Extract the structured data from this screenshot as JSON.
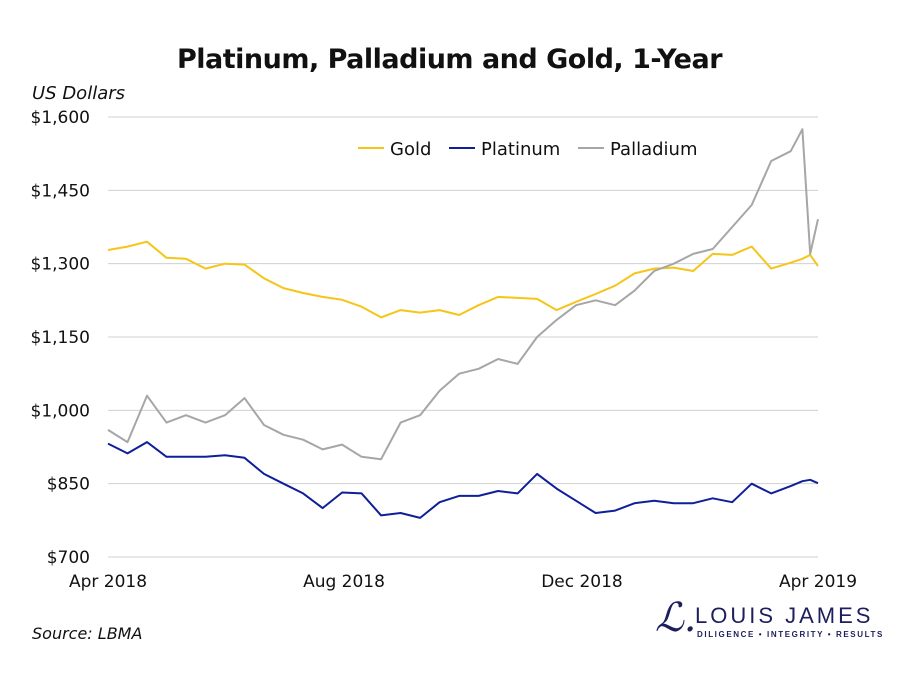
{
  "chart_data": {
    "type": "line",
    "title": "Platinum, Palladium and Gold, 1-Year",
    "ylabel": "US Dollars",
    "xlabel": "",
    "source": "Source: LBMA",
    "ylim": [
      700,
      1600
    ],
    "yticks": [
      700,
      850,
      1000,
      1150,
      1300,
      1450,
      1600
    ],
    "ytick_labels": [
      "$700",
      "$850",
      "$1,000",
      "$1,150",
      "$1,300",
      "$1,450",
      "$1,600"
    ],
    "xlim": [
      "2018-04-02",
      "2019-04-01"
    ],
    "xticks": [
      "2018-04-01",
      "2018-08-01",
      "2018-12-01",
      "2019-04-01"
    ],
    "xtick_labels": [
      "Apr 2018",
      "Aug 2018",
      "Dec 2018",
      "Apr 2019"
    ],
    "grid": "horizontal",
    "legend_position": "top-right",
    "x": [
      "2018-04-02",
      "2018-04-12",
      "2018-04-22",
      "2018-05-02",
      "2018-05-12",
      "2018-05-22",
      "2018-06-01",
      "2018-06-11",
      "2018-06-21",
      "2018-07-01",
      "2018-07-11",
      "2018-07-21",
      "2018-07-31",
      "2018-08-10",
      "2018-08-20",
      "2018-08-30",
      "2018-09-09",
      "2018-09-19",
      "2018-09-29",
      "2018-10-09",
      "2018-10-19",
      "2018-10-29",
      "2018-11-08",
      "2018-11-18",
      "2018-11-28",
      "2018-12-08",
      "2018-12-18",
      "2018-12-28",
      "2019-01-07",
      "2019-01-17",
      "2019-01-27",
      "2019-02-06",
      "2019-02-16",
      "2019-02-26",
      "2019-03-08",
      "2019-03-18",
      "2019-03-24",
      "2019-03-28",
      "2019-04-01"
    ],
    "series": [
      {
        "name": "Gold",
        "color": "#F5C518",
        "values": [
          1328,
          1335,
          1345,
          1312,
          1310,
          1290,
          1300,
          1298,
          1270,
          1250,
          1240,
          1232,
          1226,
          1212,
          1190,
          1205,
          1200,
          1205,
          1195,
          1215,
          1232,
          1230,
          1228,
          1205,
          1222,
          1238,
          1255,
          1280,
          1290,
          1292,
          1285,
          1320,
          1318,
          1335,
          1290,
          1302,
          1310,
          1318,
          1295
        ]
      },
      {
        "name": "Platinum",
        "color": "#0F1F9A",
        "values": [
          932,
          912,
          935,
          905,
          905,
          905,
          908,
          903,
          870,
          850,
          830,
          800,
          832,
          830,
          785,
          790,
          780,
          812,
          825,
          825,
          835,
          830,
          870,
          840,
          815,
          790,
          795,
          810,
          815,
          810,
          810,
          820,
          812,
          850,
          830,
          845,
          855,
          858,
          851
        ]
      },
      {
        "name": "Palladium",
        "color": "#A6A6A6",
        "values": [
          960,
          935,
          1030,
          975,
          990,
          975,
          990,
          1025,
          970,
          950,
          940,
          920,
          930,
          905,
          900,
          975,
          990,
          1040,
          1075,
          1085,
          1105,
          1095,
          1150,
          1185,
          1215,
          1225,
          1215,
          1245,
          1285,
          1300,
          1320,
          1330,
          1375,
          1420,
          1510,
          1530,
          1575,
          1320,
          1391
        ]
      }
    ]
  },
  "logo": {
    "name": "LOUIS JAMES",
    "tagline": "DILIGENCE  •  INTEGRITY  •  RESULTS",
    "mark": "L."
  }
}
